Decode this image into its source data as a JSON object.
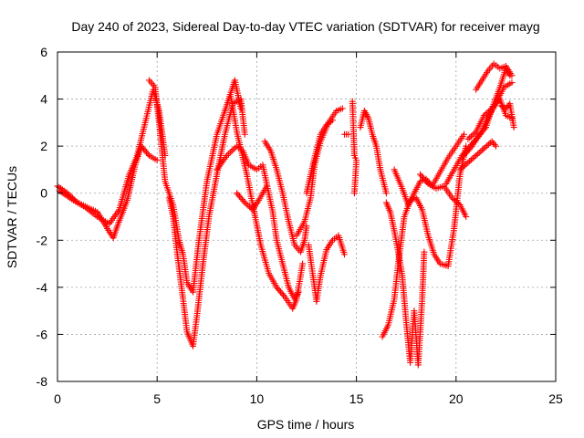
{
  "chart_data": {
    "type": "scatter",
    "title": "Day 240 of 2023, Sidereal Day-to-day VTEC variation (SDTVAR) for receiver mayg",
    "xlabel": "GPS time / hours",
    "ylabel": "SDTVAR / TECUs",
    "xlim": [
      0,
      25
    ],
    "ylim": [
      -8,
      6
    ],
    "xticks": [
      0,
      5,
      10,
      15,
      20,
      25
    ],
    "xtick_labels": [
      "0",
      "5",
      "10",
      "15",
      "20",
      "25"
    ],
    "yticks": [
      -8,
      -6,
      -4,
      -2,
      0,
      2,
      4,
      6
    ],
    "ytick_labels": [
      "-8",
      "-6",
      "-4",
      "-2",
      "0",
      "2",
      "4",
      "6"
    ],
    "grid": true,
    "marker": "+",
    "color": "#ff0000",
    "series": [
      {
        "tracks": [
          [
            [
              0.0,
              0.3
            ],
            [
              0.5,
              0.0
            ],
            [
              1.0,
              -0.4
            ],
            [
              1.5,
              -0.6
            ],
            [
              2.0,
              -0.8
            ],
            [
              2.5,
              -1.5
            ],
            [
              2.8,
              -1.9
            ],
            [
              3.0,
              -1.4
            ],
            [
              3.5,
              -0.3
            ],
            [
              3.9,
              1.2
            ],
            [
              4.2,
              2.0
            ],
            [
              4.6,
              1.6
            ],
            [
              5.0,
              1.4
            ]
          ],
          [
            [
              0.1,
              0.1
            ],
            [
              0.8,
              -0.3
            ],
            [
              1.4,
              -0.6
            ],
            [
              2.0,
              -1.0
            ],
            [
              2.6,
              -1.3
            ],
            [
              3.1,
              -0.7
            ],
            [
              3.6,
              0.8
            ],
            [
              4.0,
              1.6
            ],
            [
              4.4,
              3.0
            ],
            [
              4.8,
              4.4
            ],
            [
              5.1,
              3.5
            ],
            [
              5.4,
              1.6
            ]
          ],
          [
            [
              4.6,
              4.8
            ],
            [
              4.9,
              4.5
            ],
            [
              5.1,
              3.0
            ],
            [
              5.4,
              0.5
            ],
            [
              5.8,
              -0.5
            ],
            [
              6.1,
              -2.0
            ],
            [
              6.3,
              -2.6
            ],
            [
              6.5,
              -3.8
            ],
            [
              6.8,
              -4.2
            ],
            [
              7.1,
              -2.0
            ],
            [
              7.5,
              0.5
            ],
            [
              8.0,
              2.5
            ],
            [
              8.4,
              3.5
            ],
            [
              8.9,
              4.8
            ],
            [
              9.2,
              3.6
            ]
          ],
          [
            [
              5.6,
              -0.2
            ],
            [
              5.8,
              -1.0
            ],
            [
              6.0,
              -2.5
            ],
            [
              6.3,
              -4.5
            ],
            [
              6.5,
              -5.9
            ],
            [
              6.8,
              -6.5
            ],
            [
              7.0,
              -5.2
            ],
            [
              7.3,
              -3.0
            ],
            [
              7.6,
              -1.0
            ],
            [
              8.0,
              0.8
            ],
            [
              8.4,
              2.5
            ],
            [
              8.8,
              3.8
            ],
            [
              9.2,
              4.0
            ],
            [
              9.4,
              2.5
            ]
          ],
          [
            [
              8.0,
              1.0
            ],
            [
              8.5,
              1.6
            ],
            [
              9.0,
              2.0
            ],
            [
              9.3,
              1.8
            ],
            [
              9.6,
              1.2
            ],
            [
              10.0,
              1.0
            ],
            [
              10.3,
              1.2
            ],
            [
              10.8,
              -0.8
            ],
            [
              11.0,
              -2.0
            ],
            [
              11.3,
              -3.0
            ],
            [
              11.6,
              -4.0
            ],
            [
              11.9,
              -4.5
            ],
            [
              12.1,
              -4.2
            ]
          ],
          [
            [
              8.7,
              4.1
            ],
            [
              9.0,
              2.6
            ],
            [
              9.5,
              0.8
            ],
            [
              9.8,
              -0.5
            ],
            [
              10.2,
              -2.2
            ],
            [
              10.6,
              -3.4
            ],
            [
              11.0,
              -4.0
            ],
            [
              11.4,
              -4.4
            ],
            [
              11.8,
              -4.9
            ],
            [
              12.0,
              -4.5
            ],
            [
              12.3,
              -3.0
            ]
          ],
          [
            [
              10.4,
              2.2
            ],
            [
              10.7,
              1.8
            ],
            [
              11.0,
              1.0
            ],
            [
              11.3,
              0.0
            ],
            [
              11.6,
              -1.2
            ],
            [
              11.9,
              -2.2
            ],
            [
              12.2,
              -2.5
            ],
            [
              12.4,
              -2.0
            ],
            [
              12.5,
              -1.4
            ]
          ],
          [
            [
              9.0,
              0.0
            ],
            [
              9.4,
              -0.4
            ],
            [
              9.8,
              -0.7
            ],
            [
              10.1,
              -0.3
            ],
            [
              10.5,
              0.3
            ]
          ],
          [
            [
              12.0,
              -1.8
            ],
            [
              12.4,
              -1.2
            ],
            [
              12.7,
              -0.2
            ],
            [
              12.9,
              1.2
            ],
            [
              13.2,
              2.2
            ],
            [
              13.6,
              3.0
            ],
            [
              14.0,
              3.5
            ],
            [
              14.3,
              3.6
            ]
          ],
          [
            [
              12.6,
              -2.2
            ],
            [
              13.0,
              -4.6
            ],
            [
              13.2,
              -3.5
            ],
            [
              13.5,
              -2.4
            ],
            [
              13.8,
              -2.0
            ],
            [
              14.1,
              -1.8
            ],
            [
              14.4,
              -2.6
            ]
          ],
          [
            [
              12.5,
              0.0
            ],
            [
              12.9,
              1.5
            ],
            [
              13.2,
              2.5
            ],
            [
              13.5,
              2.9
            ],
            [
              13.8,
              3.1
            ]
          ],
          [
            [
              14.4,
              2.5
            ],
            [
              14.6,
              2.5
            ]
          ],
          [
            [
              14.8,
              3.9
            ],
            [
              14.9,
              1.6
            ],
            [
              15.0,
              1.4
            ],
            [
              14.9,
              0.0
            ]
          ],
          [
            [
              15.2,
              2.8
            ],
            [
              15.4,
              3.5
            ],
            [
              15.6,
              3.2
            ],
            [
              15.8,
              2.5
            ],
            [
              16.0,
              2.0
            ],
            [
              16.2,
              1.0
            ],
            [
              16.5,
              0.0
            ]
          ],
          [
            [
              16.3,
              -6.1
            ],
            [
              16.6,
              -5.6
            ],
            [
              16.9,
              -4.5
            ],
            [
              17.1,
              -3.0
            ],
            [
              17.4,
              -1.0
            ],
            [
              17.7,
              -0.3
            ],
            [
              18.0,
              -0.2
            ],
            [
              18.3,
              -0.7
            ],
            [
              18.6,
              -1.8
            ],
            [
              18.9,
              -2.6
            ],
            [
              19.2,
              -3.0
            ],
            [
              19.6,
              -3.1
            ],
            [
              19.9,
              -1.5
            ],
            [
              20.2,
              0.8
            ],
            [
              20.5,
              2.0
            ]
          ],
          [
            [
              16.5,
              -0.4
            ],
            [
              16.7,
              -0.8
            ],
            [
              16.9,
              -1.6
            ],
            [
              17.1,
              -2.5
            ],
            [
              17.3,
              -3.5
            ],
            [
              17.5,
              -5.5
            ],
            [
              17.7,
              -7.2
            ],
            [
              17.9,
              -5.0
            ],
            [
              18.1,
              -7.3
            ],
            [
              18.3,
              -4.5
            ],
            [
              18.4,
              -2.5
            ]
          ],
          [
            [
              16.9,
              1.0
            ],
            [
              17.3,
              0.2
            ],
            [
              17.6,
              -0.5
            ],
            [
              17.9,
              0.0
            ],
            [
              18.2,
              0.5
            ],
            [
              18.5,
              0.6
            ],
            [
              18.8,
              0.3
            ],
            [
              19.2,
              0.9
            ],
            [
              19.6,
              1.5
            ],
            [
              20.0,
              2.0
            ],
            [
              20.4,
              2.5
            ]
          ],
          [
            [
              18.2,
              0.8
            ],
            [
              18.6,
              0.4
            ],
            [
              19.0,
              0.2
            ],
            [
              19.4,
              0.3
            ],
            [
              19.8,
              -0.2
            ],
            [
              20.2,
              -0.5
            ],
            [
              20.5,
              -1.0
            ]
          ],
          [
            [
              19.5,
              0.4
            ],
            [
              19.9,
              1.0
            ],
            [
              20.3,
              1.6
            ],
            [
              20.7,
              2.0
            ],
            [
              21.1,
              2.4
            ],
            [
              21.5,
              2.8
            ],
            [
              21.8,
              3.6
            ],
            [
              22.2,
              4.5
            ],
            [
              22.5,
              5.3
            ],
            [
              22.7,
              5.0
            ]
          ],
          [
            [
              20.4,
              1.6
            ],
            [
              20.8,
              2.0
            ],
            [
              21.2,
              2.5
            ],
            [
              21.6,
              3.2
            ],
            [
              22.0,
              3.8
            ],
            [
              22.4,
              4.5
            ],
            [
              22.8,
              4.7
            ]
          ],
          [
            [
              20.2,
              1.0
            ],
            [
              20.6,
              1.3
            ],
            [
              21.0,
              1.6
            ],
            [
              21.4,
              1.9
            ],
            [
              21.8,
              2.2
            ],
            [
              22.0,
              2.0
            ]
          ],
          [
            [
              20.6,
              2.3
            ],
            [
              21.0,
              2.6
            ],
            [
              21.4,
              3.3
            ],
            [
              21.8,
              3.6
            ],
            [
              22.2,
              4.0
            ],
            [
              22.5,
              3.3
            ],
            [
              22.8,
              3.2
            ]
          ],
          [
            [
              21.0,
              4.4
            ],
            [
              21.3,
              4.8
            ],
            [
              21.6,
              5.2
            ],
            [
              21.9,
              5.5
            ],
            [
              22.2,
              5.3
            ],
            [
              22.5,
              5.4
            ],
            [
              22.8,
              5.0
            ]
          ],
          [
            [
              22.3,
              3.7
            ],
            [
              22.5,
              3.6
            ],
            [
              22.7,
              3.8
            ],
            [
              22.9,
              2.8
            ]
          ]
        ]
      }
    ]
  }
}
